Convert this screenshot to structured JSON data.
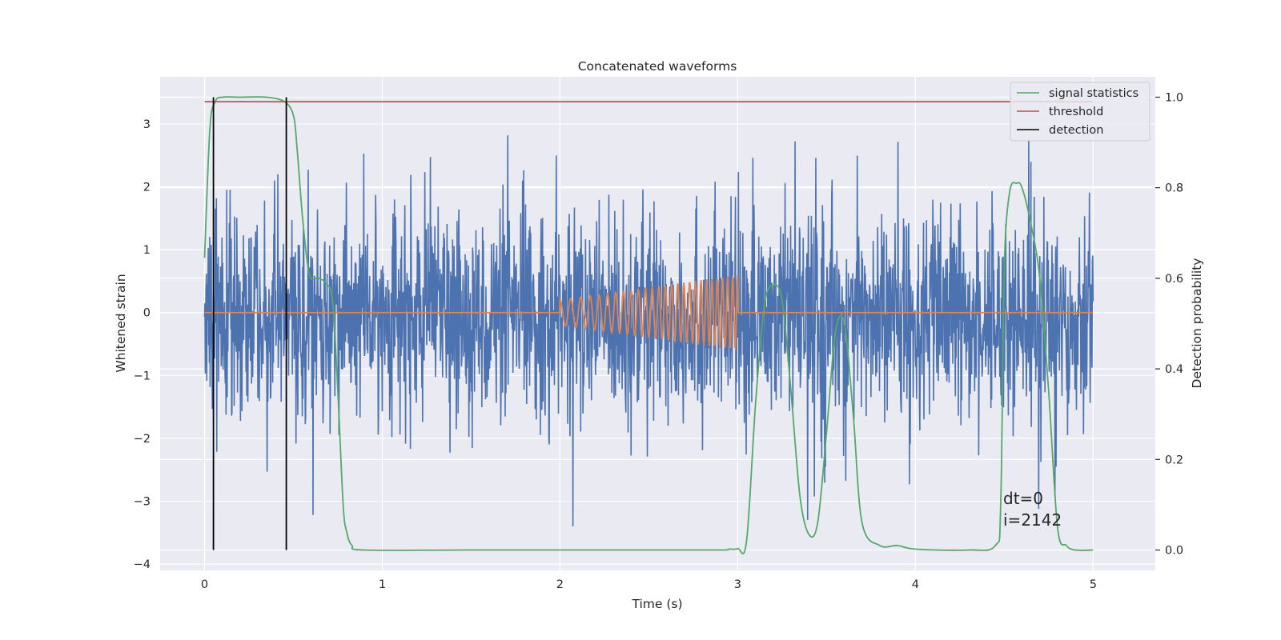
{
  "chart_data": {
    "type": "line",
    "title": "Concatenated waveforms",
    "xlabel": "Time (s)",
    "ylabel": "Whitened strain",
    "ylabel_right": "Detection probability",
    "xlim": [
      -0.25,
      5.35
    ],
    "ylim": [
      -4.1,
      3.75
    ],
    "ylim_right": [
      -0.045,
      1.045
    ],
    "xticks": [
      0,
      1,
      2,
      3,
      4,
      5
    ],
    "yticks": [
      -4,
      -3,
      -2,
      -1,
      0,
      1,
      2,
      3
    ],
    "yticks_right": [
      0.0,
      0.2,
      0.4,
      0.6,
      0.8,
      1.0
    ],
    "xtick_labels": [
      "0",
      "1",
      "2",
      "3",
      "4",
      "5"
    ],
    "ytick_labels": [
      "−4",
      "−3",
      "−2",
      "−1",
      "0",
      "1",
      "2",
      "3"
    ],
    "ytick_right_labels": [
      "0.0",
      "0.2",
      "0.4",
      "0.6",
      "0.8",
      "1.0"
    ],
    "grid": true,
    "legend_position": "top-right",
    "legend": [
      {
        "label": "signal statistics",
        "color": "#55a868"
      },
      {
        "label": "threshold",
        "color": "#c44e52"
      },
      {
        "label": "detection",
        "color": "#000000"
      }
    ],
    "annotation": {
      "lines": [
        "dt=0",
        "i=2142"
      ],
      "x": 4.5,
      "y": -3.0
    },
    "series": [
      {
        "kind": "noise",
        "axis": "left",
        "color": "#4c72b0",
        "x_range": [
          0,
          5
        ],
        "typical_amplitude": [
          -1.0,
          0.8
        ],
        "max_abs": 3.4
      },
      {
        "kind": "chirp",
        "axis": "left",
        "color": "#dd8452",
        "x_range": [
          0,
          5
        ],
        "active_range": [
          2,
          3
        ],
        "amplitude_start": 0.2,
        "amplitude_end": 0.6,
        "frequency_start": 16,
        "frequency_end": 36
      },
      {
        "name": "signal statistics",
        "axis": "right",
        "color": "#55a868",
        "x": [
          0.0,
          0.03,
          0.06,
          0.1,
          0.2,
          0.35,
          0.45,
          0.5,
          0.52,
          0.55,
          0.58,
          0.6,
          0.64,
          0.68,
          0.72,
          0.75,
          0.78,
          0.8,
          0.83,
          0.9,
          1.5,
          2.5,
          2.9,
          2.95,
          3.0,
          3.05,
          3.1,
          3.15,
          3.2,
          3.25,
          3.3,
          3.35,
          3.4,
          3.45,
          3.5,
          3.55,
          3.6,
          3.65,
          3.7,
          3.8,
          3.9,
          4.0,
          4.3,
          4.45,
          4.48,
          4.5,
          4.53,
          4.57,
          4.6,
          4.65,
          4.7,
          4.75,
          4.8,
          4.85,
          4.9,
          5.0
        ],
        "values": [
          0.645,
          0.93,
          0.99,
          1.0,
          1.0,
          1.0,
          0.99,
          0.96,
          0.89,
          0.74,
          0.63,
          0.6,
          0.6,
          0.59,
          0.55,
          0.35,
          0.1,
          0.04,
          0.01,
          0.0,
          0.0,
          0.0,
          0.0,
          0.002,
          0.003,
          0.02,
          0.32,
          0.54,
          0.585,
          0.55,
          0.35,
          0.12,
          0.035,
          0.06,
          0.26,
          0.48,
          0.5,
          0.3,
          0.06,
          0.01,
          0.01,
          0.002,
          0.0,
          0.01,
          0.1,
          0.62,
          0.79,
          0.81,
          0.8,
          0.72,
          0.6,
          0.35,
          0.05,
          0.01,
          0.0,
          0.0
        ]
      },
      {
        "name": "threshold",
        "axis": "right",
        "color": "#c44e52",
        "x": [
          0,
          5
        ],
        "values": [
          0.99,
          0.99
        ]
      },
      {
        "name": "detection",
        "axis": "right",
        "color": "#000000",
        "kind": "vlines",
        "x": [
          0.05,
          0.46
        ],
        "from": 0.0,
        "to": 1.0
      }
    ]
  }
}
